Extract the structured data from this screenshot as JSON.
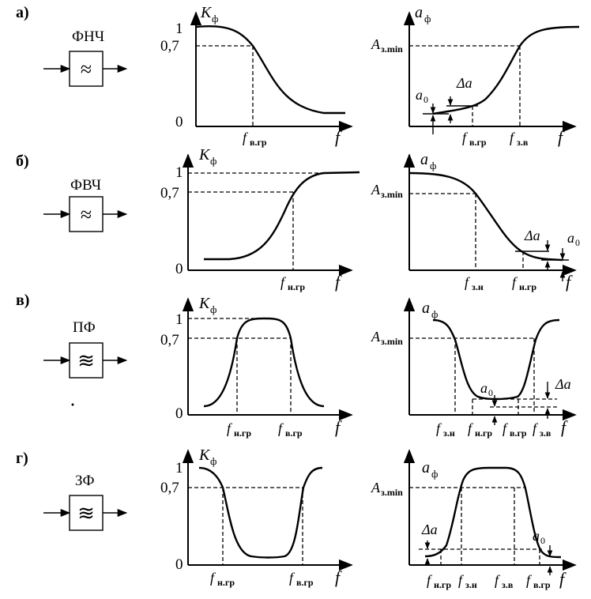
{
  "rows": [
    {
      "row_label": "а)",
      "filter_name": "ФНЧ",
      "filter_glyph": "≈",
      "k_chart": {
        "axis_y": "K",
        "axis_y_sub": "ф",
        "tick_top": "1",
        "tick_mid": "0,7",
        "tick_zero": "0",
        "axis_x": "f",
        "freq_labels": [
          {
            "f": "f",
            "sub": "в.гр"
          }
        ]
      },
      "a_chart": {
        "axis_y": "a",
        "axis_y_sub": "ф",
        "a_level": "A",
        "a_level_sub": "з.min",
        "axis_x": "f",
        "a0": "a",
        "a0_sub": "0",
        "delta": "Δa",
        "freq_labels": [
          {
            "f": "f",
            "sub": "в.гр"
          },
          {
            "f": "f",
            "sub": "з.в"
          }
        ]
      }
    },
    {
      "row_label": "б)",
      "filter_name": "ФВЧ",
      "filter_glyph": "≈",
      "k_chart": {
        "axis_y": "K",
        "axis_y_sub": "ф",
        "tick_top": "1",
        "tick_mid": "0,7",
        "tick_zero": "0",
        "axis_x": "f",
        "freq_labels": [
          {
            "f": "f",
            "sub": "н.гр"
          }
        ]
      },
      "a_chart": {
        "axis_y": "a",
        "axis_y_sub": "ф",
        "a_level": "A",
        "a_level_sub": "з.min",
        "axis_x": "f",
        "a0": "a",
        "a0_sub": "0",
        "delta": "Δa",
        "freq_labels": [
          {
            "f": "f",
            "sub": "з.н"
          },
          {
            "f": "f",
            "sub": "н.гр"
          }
        ]
      }
    },
    {
      "row_label": "в)",
      "filter_name": "ПФ",
      "filter_glyph": "≋",
      "k_chart": {
        "axis_y": "K",
        "axis_y_sub": "ф",
        "tick_top": "1",
        "tick_mid": "0,7",
        "tick_zero": "0",
        "axis_x": "f",
        "freq_labels": [
          {
            "f": "f",
            "sub": "н.гр"
          },
          {
            "f": "f",
            "sub": "в.гр"
          }
        ]
      },
      "a_chart": {
        "axis_y": "a",
        "axis_y_sub": "ф",
        "a_level": "A",
        "a_level_sub": "з.min",
        "axis_x": "f",
        "a0": "a",
        "a0_sub": "0",
        "delta": "Δa",
        "freq_labels": [
          {
            "f": "f",
            "sub": "з.н"
          },
          {
            "f": "f",
            "sub": "н.гр"
          },
          {
            "f": "f",
            "sub": "в.гр"
          },
          {
            "f": "f",
            "sub": "з.в"
          }
        ]
      }
    },
    {
      "row_label": "г)",
      "filter_name": "ЗФ",
      "filter_glyph": "≋",
      "k_chart": {
        "axis_y": "K",
        "axis_y_sub": "ф",
        "tick_top": "1",
        "tick_mid": "0,7",
        "tick_zero": "0",
        "axis_x": "f",
        "freq_labels": [
          {
            "f": "f",
            "sub": "н.гр"
          },
          {
            "f": "f",
            "sub": "в.гр"
          }
        ]
      },
      "a_chart": {
        "axis_y": "a",
        "axis_y_sub": "ф",
        "a_level": "A",
        "a_level_sub": "з.min",
        "axis_x": "f",
        "a0": "a",
        "a0_sub": "0",
        "delta": "Δa",
        "freq_labels": [
          {
            "f": "f",
            "sub": "н.гр"
          },
          {
            "f": "f",
            "sub": "з.н"
          },
          {
            "f": "f",
            "sub": "з.в"
          },
          {
            "f": "f",
            "sub": "в.гр"
          }
        ]
      }
    }
  ]
}
